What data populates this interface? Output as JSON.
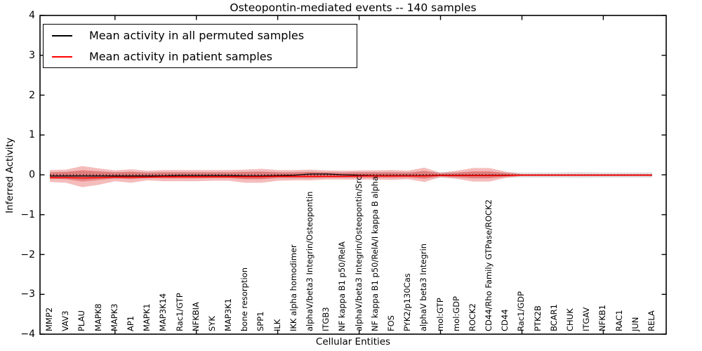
{
  "title": "Osteopontin-mediated events -- 140 samples",
  "axes": {
    "xlabel": "Cellular Entities",
    "ylabel": "Inferred Activity"
  },
  "legend": {
    "entries": [
      {
        "label": "Mean activity in all permuted samples",
        "color": "#000000"
      },
      {
        "label": "Mean activity in patient samples",
        "color": "#ff0000"
      }
    ]
  },
  "colors": {
    "permuted_line": "#000000",
    "permuted_band": "#c8c8c8",
    "patient_line": "#ff0000",
    "patient_band": "#dd2222",
    "frame": "#000000",
    "zero_line": "#000000"
  },
  "chart_data": {
    "type": "area",
    "title": "Osteopontin-mediated events -- 140 samples",
    "xlabel": "Cellular Entities",
    "ylabel": "Inferred Activity",
    "ylim": [
      -4,
      4
    ],
    "yticks": [
      4,
      3,
      2,
      1,
      0,
      -1,
      -2,
      -3,
      -4
    ],
    "x_major_tick_indices": [
      4,
      9,
      14,
      19,
      24,
      29,
      34
    ],
    "n_samples": 140,
    "zero_line": 0,
    "grid": false,
    "legend_position": "upper left",
    "categories": [
      "MMP2",
      "VAV3",
      "PLAU",
      "MAPK8",
      "MAPK3",
      "AP1",
      "MAPK1",
      "MAP3K14",
      "Rac1/GTP",
      "NFKBIA",
      "SYK",
      "MAP3K1",
      "bone resorption",
      "SPP1",
      "ILK",
      "IKK alpha homodimer",
      "alphaV/beta3 Integrin/Osteopontin",
      "ITGB3",
      "NF kappa B1 p50/RelA",
      "alphaV/beta3 Integrin/Osteopontin/Src",
      "NF kappa B1 p50/RelA/I kappa B alpha",
      "FOS",
      "PYK2/p130Cas",
      "alphaV beta3 Integrin",
      "mol:GTP",
      "mol:GDP",
      "ROCK2",
      "CD44/Rho Family GTPase/ROCK2",
      "CD44",
      "Rac1/GDP",
      "PTK2B",
      "BCAR1",
      "CHUK",
      "ITGAV",
      "NFKB1",
      "RAC1",
      "JUN",
      "RELA"
    ],
    "series": [
      {
        "name": "Mean activity in all permuted samples",
        "style": "line+band",
        "color": "#000000",
        "band_color": "#c8c8c8",
        "values": [
          -0.03,
          -0.03,
          -0.03,
          -0.03,
          -0.03,
          -0.03,
          -0.03,
          -0.03,
          -0.02,
          -0.02,
          -0.02,
          -0.02,
          -0.03,
          -0.03,
          -0.02,
          -0.01,
          0.02,
          0.02,
          0.0,
          -0.01,
          -0.02,
          -0.02,
          -0.02,
          -0.02,
          -0.01,
          -0.01,
          -0.01,
          -0.01,
          -0.01,
          -0.01,
          -0.01,
          -0.01,
          -0.01,
          -0.01,
          -0.01,
          -0.01,
          -0.01,
          -0.01
        ],
        "band_upper": [
          0.07,
          0.08,
          0.09,
          0.08,
          0.07,
          0.07,
          0.07,
          0.07,
          0.07,
          0.07,
          0.07,
          0.07,
          0.08,
          0.08,
          0.07,
          0.07,
          0.08,
          0.07,
          0.07,
          0.07,
          0.07,
          0.07,
          0.07,
          0.08,
          0.07,
          0.07,
          0.07,
          0.07,
          0.06,
          0.06,
          0.06,
          0.06,
          0.07,
          0.07,
          0.06,
          0.06,
          0.06,
          0.06
        ],
        "band_lower": [
          -0.1,
          -0.11,
          -0.12,
          -0.11,
          -0.1,
          -0.1,
          -0.09,
          -0.09,
          -0.09,
          -0.09,
          -0.09,
          -0.09,
          -0.11,
          -0.11,
          -0.09,
          -0.09,
          -0.09,
          -0.08,
          -0.08,
          -0.08,
          -0.08,
          -0.08,
          -0.08,
          -0.09,
          -0.08,
          -0.08,
          -0.08,
          -0.08,
          -0.07,
          -0.07,
          -0.07,
          -0.07,
          -0.08,
          -0.08,
          -0.07,
          -0.07,
          -0.07,
          -0.07
        ]
      },
      {
        "name": "Mean activity in patient samples",
        "style": "line+band",
        "color": "#ff0000",
        "band_color": "#dd2222",
        "values": [
          -0.07,
          -0.07,
          -0.08,
          -0.07,
          -0.06,
          -0.06,
          -0.06,
          -0.05,
          -0.05,
          -0.05,
          -0.05,
          -0.05,
          -0.05,
          -0.05,
          -0.04,
          -0.04,
          -0.04,
          -0.04,
          -0.04,
          -0.03,
          -0.03,
          -0.03,
          -0.03,
          -0.03,
          -0.02,
          -0.02,
          -0.02,
          -0.02,
          -0.02,
          -0.01,
          -0.01,
          -0.01,
          -0.01,
          -0.01,
          -0.01,
          -0.01,
          -0.01,
          -0.01
        ],
        "band_upper": [
          0.12,
          0.13,
          0.22,
          0.16,
          0.11,
          0.14,
          0.1,
          0.12,
          0.12,
          0.12,
          0.12,
          0.12,
          0.13,
          0.15,
          0.12,
          0.12,
          0.13,
          0.11,
          0.1,
          0.11,
          0.11,
          0.12,
          0.1,
          0.18,
          0.05,
          0.1,
          0.17,
          0.17,
          0.08,
          0.02,
          0.02,
          0.02,
          0.02,
          0.02,
          0.02,
          0.02,
          0.02,
          0.02
        ],
        "band_lower": [
          -0.18,
          -0.2,
          -0.31,
          -0.25,
          -0.16,
          -0.2,
          -0.14,
          -0.16,
          -0.16,
          -0.16,
          -0.15,
          -0.15,
          -0.2,
          -0.2,
          -0.15,
          -0.14,
          -0.14,
          -0.12,
          -0.12,
          -0.12,
          -0.12,
          -0.13,
          -0.11,
          -0.18,
          -0.06,
          -0.1,
          -0.17,
          -0.17,
          -0.08,
          -0.03,
          -0.03,
          -0.03,
          -0.03,
          -0.03,
          -0.03,
          -0.03,
          -0.03,
          -0.03
        ],
        "band_inner_upper": [
          0.06,
          0.07,
          0.12,
          0.09,
          0.06,
          0.08,
          0.05,
          0.06,
          0.06,
          0.06,
          0.06,
          0.06,
          0.07,
          0.08,
          0.06,
          0.06,
          0.07,
          0.06,
          0.05,
          0.06,
          0.06,
          0.06,
          0.05,
          0.1,
          0.03,
          0.05,
          0.09,
          0.09,
          0.04,
          0.01,
          0.01,
          0.01,
          0.01,
          0.01,
          0.01,
          0.01,
          0.01,
          0.01
        ],
        "band_inner_lower": [
          -0.1,
          -0.11,
          -0.17,
          -0.13,
          -0.09,
          -0.11,
          -0.08,
          -0.09,
          -0.09,
          -0.09,
          -0.08,
          -0.08,
          -0.11,
          -0.11,
          -0.08,
          -0.08,
          -0.08,
          -0.07,
          -0.07,
          -0.07,
          -0.07,
          -0.07,
          -0.06,
          -0.1,
          -0.03,
          -0.06,
          -0.09,
          -0.09,
          -0.04,
          -0.02,
          -0.02,
          -0.02,
          -0.02,
          -0.02,
          -0.02,
          -0.02,
          -0.02,
          -0.02
        ]
      }
    ]
  }
}
